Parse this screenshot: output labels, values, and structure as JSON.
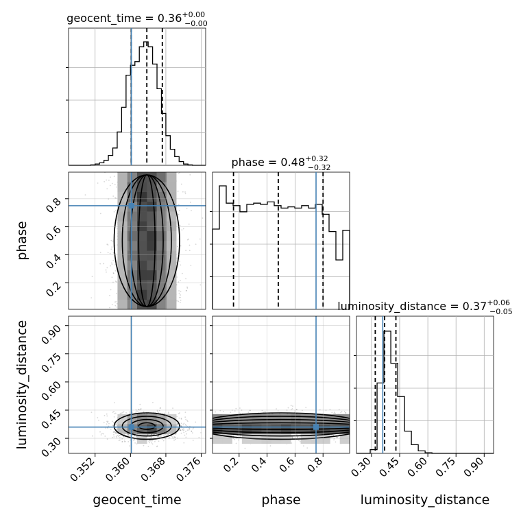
{
  "chart_data": {
    "type": "corner",
    "truth_color": "#4682b4",
    "parameters": [
      "geocent_time",
      "phase",
      "luminosity_distance"
    ],
    "titles": [
      {
        "base": "geocent_time = 0.36",
        "sup": "+0.00",
        "sub": "−0.00"
      },
      {
        "base": "phase = 0.48",
        "sup": "+0.32",
        "sub": "−0.32"
      },
      {
        "base": "luminosity_distance = 0.37",
        "sup": "+0.06",
        "sub": "−0.05"
      }
    ],
    "axis_labels": {
      "x": [
        "geocent_time",
        "phase",
        "luminosity_distance"
      ],
      "y": [
        "phase",
        "luminosity_distance"
      ]
    },
    "ranges": {
      "geocent_time": [
        0.346,
        0.377
      ],
      "phase": [
        0.01,
        0.99
      ],
      "luminosity_distance": [
        0.22,
        0.95
      ]
    },
    "ticks": {
      "geocent_time": [
        0.352,
        0.36,
        0.368,
        0.376
      ],
      "phase": [
        0.2,
        0.4,
        0.6,
        0.8
      ],
      "luminosity_distance": [
        0.3,
        0.45,
        0.6,
        0.75,
        0.9
      ]
    },
    "tick_labels": {
      "geocent_time": [
        "0.352",
        "0.360",
        "0.368",
        "0.376"
      ],
      "phase": [
        "0.2",
        "0.4",
        "0.6",
        "0.8"
      ],
      "luminosity_distance": [
        "0.30",
        "0.45",
        "0.60",
        "0.75",
        "0.90"
      ]
    },
    "truths": {
      "geocent_time": 0.3602,
      "phase": 0.75,
      "luminosity_distance": 0.36
    },
    "quantiles": {
      "geocent_time": [
        0.3602,
        0.3637,
        0.3672
      ],
      "phase": [
        0.16,
        0.48,
        0.8
      ],
      "luminosity_distance": [
        0.32,
        0.37,
        0.43
      ]
    },
    "histograms": {
      "geocent_time": {
        "edges": [
          0.346,
          0.347,
          0.348,
          0.349,
          0.35,
          0.351,
          0.352,
          0.353,
          0.354,
          0.355,
          0.356,
          0.357,
          0.358,
          0.359,
          0.36,
          0.361,
          0.362,
          0.363,
          0.364,
          0.365,
          0.366,
          0.367,
          0.368,
          0.369,
          0.37,
          0.371,
          0.372,
          0.373,
          0.374,
          0.375,
          0.376,
          0.377
        ],
        "counts": [
          0,
          0,
          0,
          0,
          0,
          0.003,
          0.01,
          0.02,
          0.04,
          0.08,
          0.14,
          0.27,
          0.47,
          0.73,
          0.81,
          0.84,
          0.96,
          1.0,
          0.96,
          0.82,
          0.62,
          0.42,
          0.24,
          0.13,
          0.07,
          0.03,
          0.01,
          0.003,
          0,
          0,
          0
        ]
      },
      "phase": {
        "edges": [
          0.01,
          0.059,
          0.108,
          0.157,
          0.206,
          0.255,
          0.304,
          0.353,
          0.402,
          0.451,
          0.5,
          0.549,
          0.598,
          0.647,
          0.696,
          0.745,
          0.794,
          0.843,
          0.892,
          0.941,
          0.99
        ],
        "counts": [
          0.65,
          1.0,
          0.86,
          0.84,
          0.79,
          0.85,
          0.86,
          0.85,
          0.87,
          0.84,
          0.82,
          0.83,
          0.82,
          0.84,
          0.82,
          0.85,
          0.77,
          0.63,
          0.4,
          0.64
        ]
      },
      "luminosity_distance": {
        "edges": [
          0.22,
          0.2566,
          0.2931,
          0.3297,
          0.3662,
          0.4028,
          0.4393,
          0.4759,
          0.5124,
          0.549,
          0.5855,
          0.6221,
          0.6586,
          0.6952,
          0.7317,
          0.7683,
          0.8048,
          0.8414,
          0.8779,
          0.9145,
          0.951
        ],
        "counts": [
          0,
          0,
          0.03,
          0.57,
          0.99,
          0.73,
          0.46,
          0.18,
          0.07,
          0.02,
          0.005,
          0,
          0,
          0,
          0,
          0,
          0,
          0,
          0,
          0
        ]
      }
    },
    "density_2d": [
      {
        "x": "geocent_time",
        "y": "phase",
        "center": [
          0.3637,
          0.5
        ],
        "sigma": [
          0.0037,
          0.45
        ],
        "contour_levels": [
          0.5,
          1.0,
          1.5,
          2.0
        ]
      },
      {
        "x": "geocent_time",
        "y": "luminosity_distance",
        "center": [
          0.3637,
          0.365
        ],
        "sigma": [
          0.0037,
          0.035
        ],
        "contour_levels": [
          0.5,
          1.0,
          1.5,
          2.0
        ]
      },
      {
        "x": "phase",
        "y": "luminosity_distance",
        "center": [
          0.5,
          0.365
        ],
        "sigma": [
          0.45,
          0.035
        ],
        "contour_levels": [
          0.5,
          1.0,
          1.5,
          2.0
        ]
      }
    ]
  }
}
